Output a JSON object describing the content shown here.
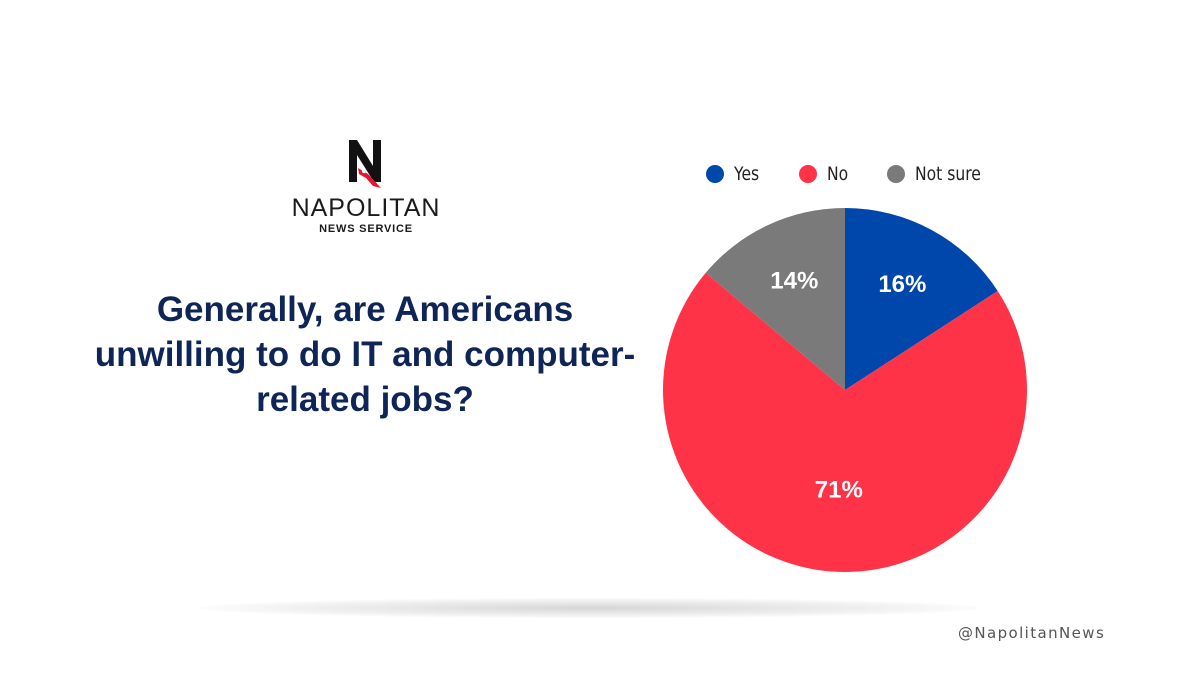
{
  "brand": {
    "name": "NAPOLITAN",
    "subtitle": "NEWS SERVICE",
    "logo_letter": "N",
    "logo_icon": "napolitan-n-eagle-logo"
  },
  "question": "Generally, are Americans unwilling to do IT and computer-related jobs?",
  "handle": "@NapolitanNews",
  "colors": {
    "yes": "#0047ab",
    "no": "#ff3347",
    "not_sure": "#7a7a7a",
    "question_text": "#0f2557"
  },
  "chart_data": {
    "type": "pie",
    "legend_position": "top",
    "slices": [
      {
        "label": "Yes",
        "value": 16,
        "display": "16%",
        "color": "#0047ab"
      },
      {
        "label": "No",
        "value": 71,
        "display": "71%",
        "color": "#ff3347"
      },
      {
        "label": "Not sure",
        "value": 14,
        "display": "14%",
        "color": "#7a7a7a"
      }
    ]
  }
}
